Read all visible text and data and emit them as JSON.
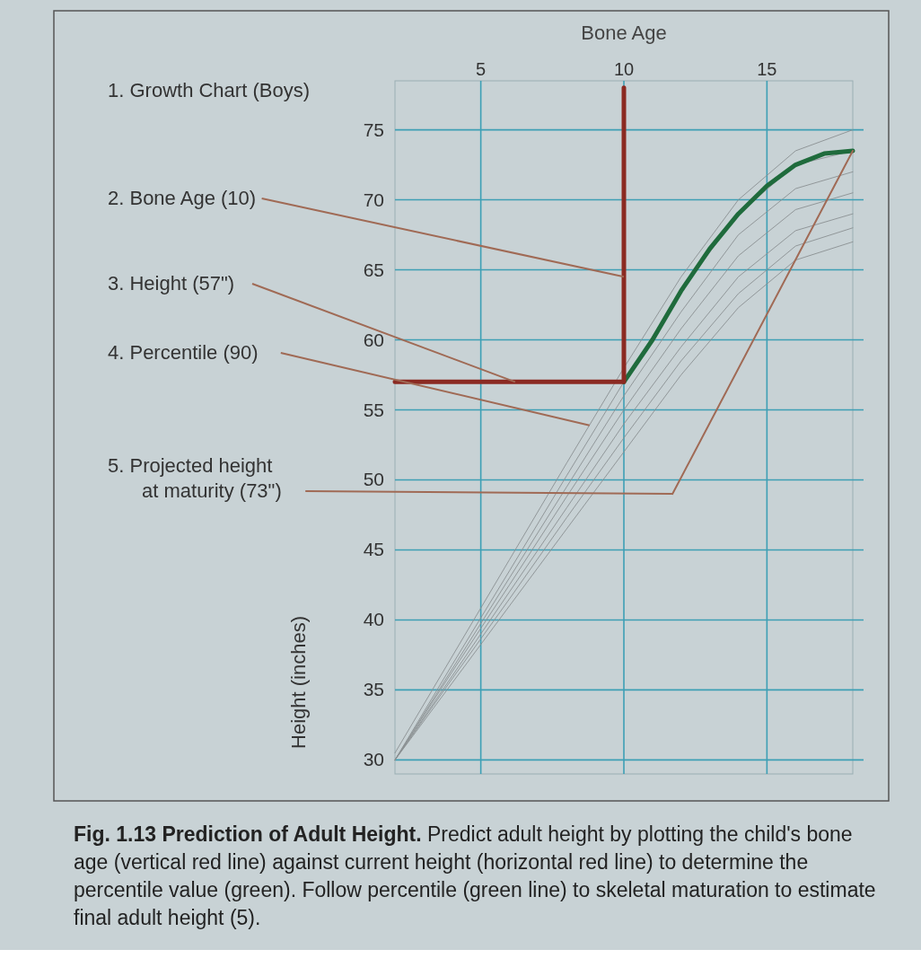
{
  "chart_data": {
    "type": "line",
    "title": "Fig. 1.13 Prediction of Adult Height.",
    "subtitle": "Predict adult height by plotting the child's bone age (vertical red line) against current height (horizontal red line) to determine the percentile value (green). Follow percentile (green line) to skeletal maturation to estimate final adult height (5).",
    "xlabel": "Bone Age",
    "ylabel": "Height (inches)",
    "xlim": [
      2,
      18
    ],
    "xticks": [
      5,
      10,
      15
    ],
    "ylim": [
      29,
      78.5
    ],
    "yticks": [
      30,
      35,
      40,
      45,
      50,
      55,
      60,
      65,
      70,
      75
    ],
    "grid": true,
    "x": [
      2,
      4,
      6,
      8,
      10,
      12,
      14,
      16,
      18
    ],
    "series": [
      {
        "color": "#8a9092",
        "values": [
          30.5,
          37.4,
          44.3,
          51.2,
          58,
          64.5,
          70,
          73.5,
          75
        ]
      },
      {
        "color": "#8a9092",
        "values": [
          30,
          36.8,
          43.5,
          50.3,
          57,
          63.5,
          69,
          72.5,
          73.5
        ]
      },
      {
        "color": "#8a9092",
        "values": [
          30,
          36.5,
          43,
          49.5,
          56,
          62,
          67.5,
          70.8,
          72
        ]
      },
      {
        "color": "#8a9092",
        "values": [
          30,
          36.3,
          42.5,
          48.8,
          55,
          60.8,
          66,
          69.3,
          70.5
        ]
      },
      {
        "color": "#8a9092",
        "values": [
          30,
          36,
          42,
          48,
          54,
          59.5,
          64.5,
          67.8,
          69
        ]
      },
      {
        "color": "#8a9092",
        "values": [
          30,
          35.8,
          41.5,
          47.3,
          53,
          58.5,
          63.3,
          66.7,
          68
        ]
      },
      {
        "color": "#8a9092",
        "values": [
          30,
          35.5,
          41,
          46.5,
          52,
          57.5,
          62.3,
          65.7,
          67
        ]
      },
      {
        "color": "#1f6b3c",
        "x": [
          10,
          11,
          12,
          13,
          14,
          15,
          16,
          17,
          18
        ],
        "values": [
          57,
          60,
          63.5,
          66.5,
          69,
          71,
          72.5,
          73.3,
          73.5
        ]
      },
      {
        "color": "#8b2a22",
        "x": [
          2,
          10,
          10
        ],
        "values": [
          57,
          57,
          78
        ]
      },
      {
        "color": "#a06a55",
        "x": [
          11.7,
          18
        ],
        "values": [
          49,
          73.5
        ]
      }
    ],
    "annotations": [
      "1. Growth Chart (Boys)",
      {
        "text": "2. Bone Age (10)",
        "x": 10,
        "y": 64.5
      },
      {
        "text": "3. Height (57\")",
        "x": 6.2,
        "y": 57
      },
      {
        "text": "4. Percentile (90)",
        "x": 8.8,
        "y": 53.9
      },
      {
        "text": "5. Projected height\nat maturity (73\")",
        "x": 11.7,
        "y": 49
      }
    ]
  }
}
